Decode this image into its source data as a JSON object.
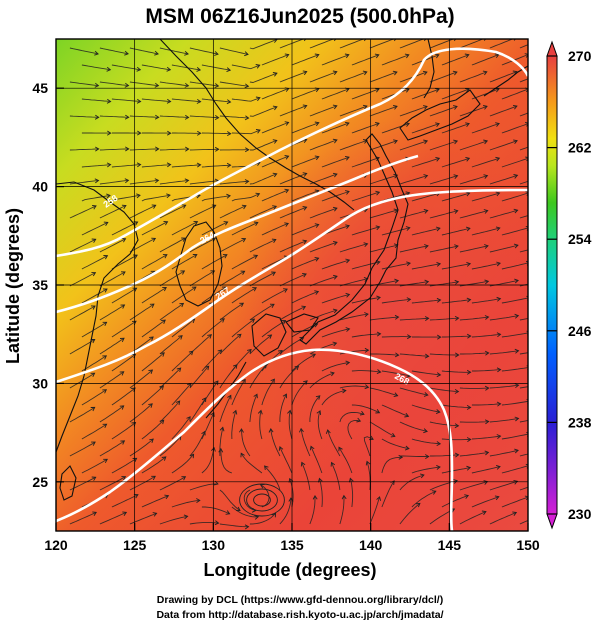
{
  "title": "MSM 06Z16Jun2025 (500.0hPa)",
  "x_axis": {
    "label": "Longitude (degrees)",
    "range": [
      120,
      150
    ],
    "ticks": [
      "120",
      "125",
      "130",
      "135",
      "140",
      "145",
      "150"
    ],
    "tick_values": [
      120,
      125,
      130,
      135,
      140,
      145,
      150
    ]
  },
  "y_axis": {
    "label": "Latitude (degrees)",
    "range": [
      22.5,
      47.5
    ],
    "ticks": [
      "25",
      "30",
      "35",
      "40",
      "45"
    ],
    "tick_values": [
      25,
      30,
      35,
      40,
      45
    ]
  },
  "colorbar": {
    "range": [
      230,
      270
    ],
    "ticks": [
      "230",
      "238",
      "246",
      "254",
      "262",
      "270"
    ],
    "tick_values": [
      230,
      238,
      246,
      254,
      262,
      270
    ],
    "extend": "both",
    "colors": [
      "#d41fd4",
      "#2a1fd4",
      "#0060ff",
      "#00c8e0",
      "#1fd07a",
      "#3ec81e",
      "#b8e61e",
      "#f0e012",
      "#f59a1a",
      "#f05a2a",
      "#e84040"
    ]
  },
  "field": {
    "variable": "temperature (colour) with wind streamlines",
    "gradient_colors": [
      "#7dd425",
      "#c8dc20",
      "#f2c21a",
      "#f28a22",
      "#ee5a2c",
      "#ea4438",
      "#ea4a40"
    ]
  },
  "contours": [
    {
      "label": "258"
    },
    {
      "label": "264"
    },
    {
      "label": "267"
    },
    {
      "label": "268"
    }
  ],
  "credits": {
    "line1": "Drawing by DCL (https://www.gfd-dennou.org/library/dcl/)",
    "line2": "Data from http://database.rish.kyoto-u.ac.jp/arch/jmadata/"
  }
}
